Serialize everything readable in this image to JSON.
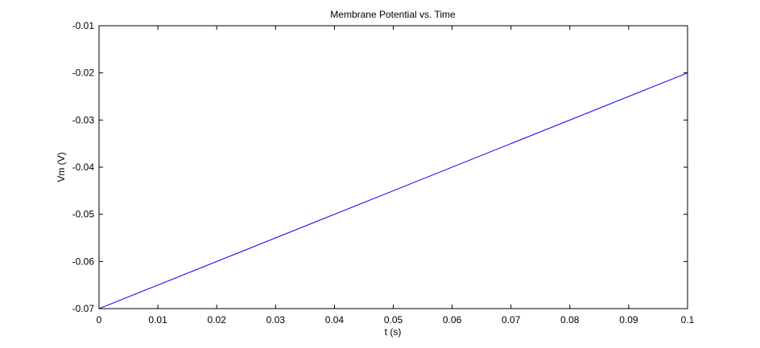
{
  "chart_data": {
    "type": "line",
    "title": "Membrane Potential vs. Time",
    "xlabel": "t (s)",
    "ylabel": "Vm (V)",
    "xlim": [
      0,
      0.1
    ],
    "ylim": [
      -0.07,
      -0.01
    ],
    "xticks": [
      0,
      0.01,
      0.02,
      0.03,
      0.04,
      0.05,
      0.06,
      0.07,
      0.08,
      0.09,
      0.1
    ],
    "xtick_labels": [
      "0",
      "0.01",
      "0.02",
      "0.03",
      "0.04",
      "0.05",
      "0.06",
      "0.07",
      "0.08",
      "0.09",
      "0.1"
    ],
    "yticks": [
      -0.07,
      -0.06,
      -0.05,
      -0.04,
      -0.03,
      -0.02,
      -0.01
    ],
    "ytick_labels": [
      "-0.07",
      "-0.06",
      "-0.05",
      "-0.04",
      "-0.03",
      "-0.02",
      "-0.01"
    ],
    "grid": false,
    "legend": "none",
    "series": [
      {
        "color": "#0000ff",
        "x": [
          0,
          0.1
        ],
        "y": [
          -0.07,
          -0.02
        ]
      }
    ]
  }
}
